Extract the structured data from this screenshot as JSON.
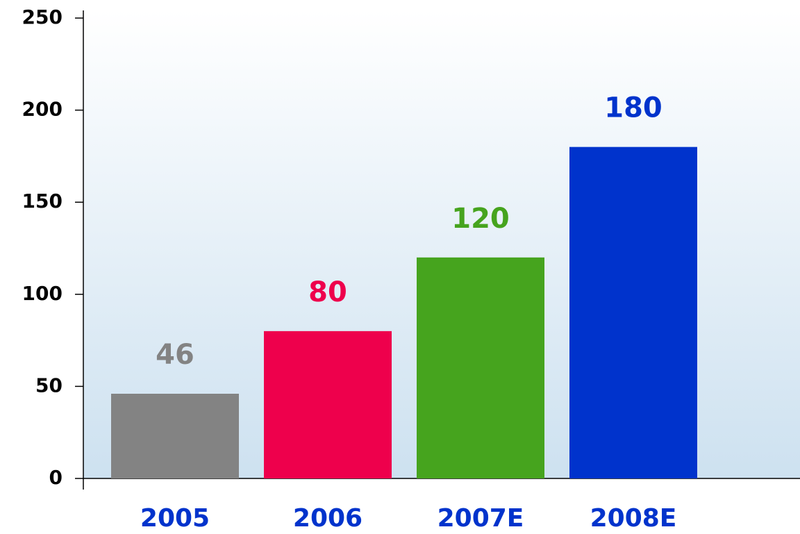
{
  "chart_data": {
    "type": "bar",
    "categories": [
      "2005",
      "2006",
      "2007E",
      "2008E"
    ],
    "values": [
      46,
      80,
      120,
      180
    ],
    "colors": [
      "#838383",
      "#ee004c",
      "#46a41e",
      "#0033cc"
    ],
    "category_color": "#0033cc",
    "ylim": [
      0,
      250
    ],
    "yticks": [
      0,
      50,
      100,
      150,
      200,
      250
    ],
    "grid": false
  }
}
